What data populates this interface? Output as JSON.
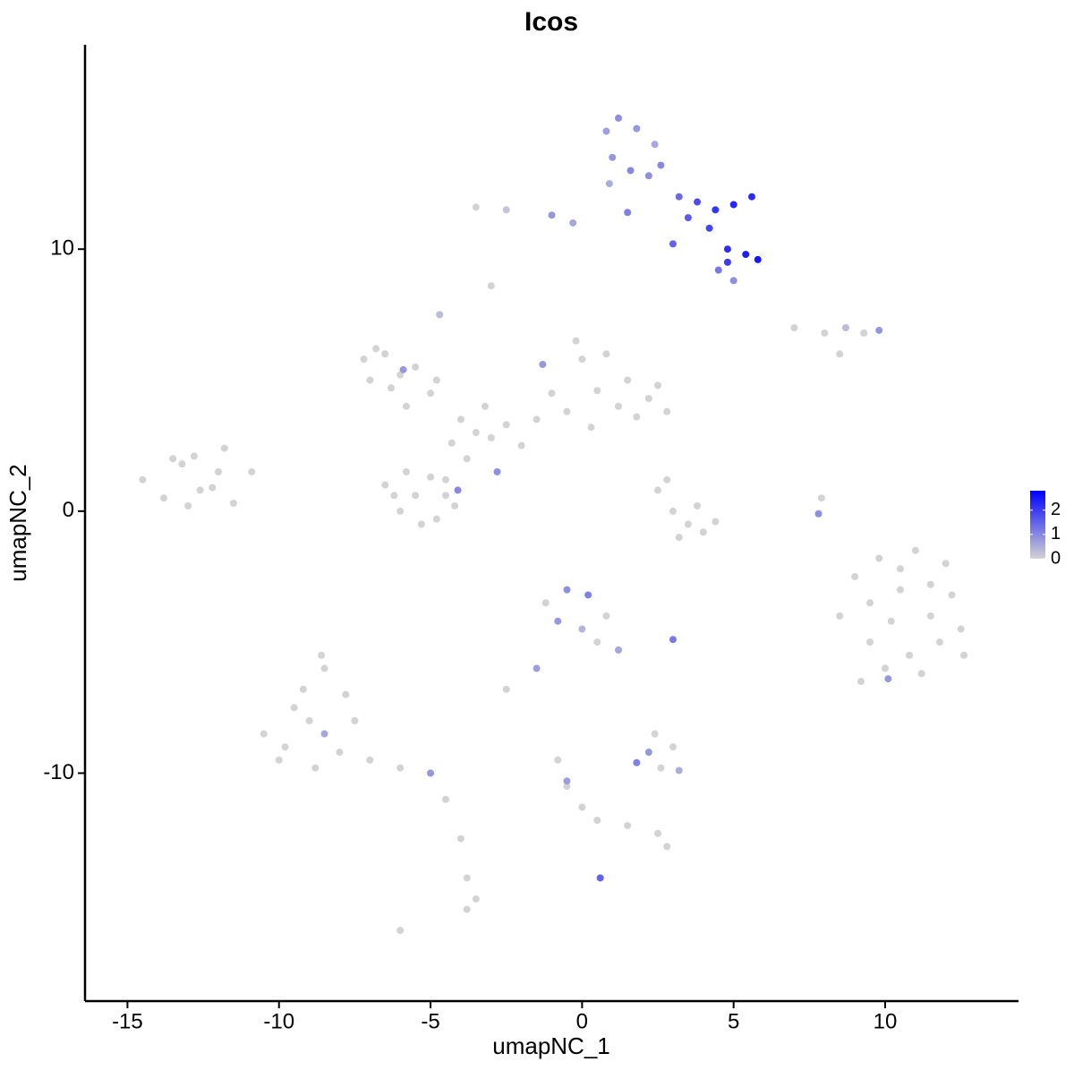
{
  "chart_data": {
    "type": "scatter",
    "title": "Icos",
    "xlabel": "umapNC_1",
    "ylabel": "umapNC_2",
    "xlim": [
      -16.4,
      14.4
    ],
    "ylim": [
      -18.7,
      17.8
    ],
    "xticks": [
      -15,
      -10,
      -5,
      0,
      5,
      10
    ],
    "yticks": [
      -10,
      0,
      10
    ],
    "color_scale": {
      "low": "#d3d3d3",
      "high": "#0000ff",
      "lim": [
        0,
        2.8
      ],
      "ticks": [
        0,
        1,
        2
      ]
    },
    "series": [
      {
        "x": [
          -14.5,
          -13.8,
          -13.2,
          -12.6,
          -12,
          -11.5,
          -13.5,
          -12.8,
          -12.2,
          -11.8,
          -13,
          -10.9
        ],
        "values": [
          1.2,
          0.5,
          1.8,
          0.8,
          1.5,
          0.3,
          2,
          2.1,
          0.9,
          2.4,
          0.2,
          1.5
        ],
        "expression": [
          0,
          0,
          0,
          0,
          0,
          0,
          0,
          0,
          0,
          0,
          0,
          0
        ]
      },
      {
        "x": [
          -7.2,
          -6.5,
          -6,
          -7,
          -6.3,
          -5.5,
          -5,
          -6.8,
          -5.8,
          -4.8,
          -5.9
        ],
        "values": [
          5.8,
          6,
          5.2,
          5,
          4.7,
          5.5,
          4.5,
          6.2,
          4,
          5,
          5.4
        ],
        "expression": [
          0,
          0,
          0,
          0,
          0,
          0,
          0,
          0,
          0,
          0,
          0.8
        ]
      },
      {
        "x": [
          -4,
          -3.5,
          -3,
          -2.5,
          -2,
          -3.8,
          -4.3,
          -2.8,
          -3.2,
          -4.5
        ],
        "values": [
          3.5,
          3,
          2.8,
          3.3,
          2.5,
          2,
          2.6,
          1.5,
          4,
          1.2
        ],
        "expression": [
          0,
          0,
          0,
          0,
          0,
          0,
          0,
          0.9,
          0,
          0
        ]
      },
      {
        "x": [
          -1,
          0,
          0.8,
          -0.5,
          1.5,
          2.2,
          2.8,
          1.8,
          0.5,
          -1.5,
          2.5,
          0.3,
          -0.2,
          1.2,
          -1.3
        ],
        "values": [
          4.5,
          5.8,
          6,
          3.8,
          5,
          4.3,
          3.8,
          3.6,
          4.6,
          3.5,
          4.8,
          3.2,
          6.5,
          4,
          5.6
        ],
        "expression": [
          0,
          0,
          0,
          0,
          0,
          0,
          0,
          0,
          0,
          0,
          0,
          0,
          0,
          0,
          0.8
        ]
      },
      {
        "x": [
          -6.5,
          -5.8,
          -5,
          -4.5,
          -6,
          -5.3,
          -4.2,
          -6.2,
          -5.5,
          -4.8,
          -4.1
        ],
        "values": [
          1,
          1.5,
          1.3,
          0.6,
          0,
          -0.5,
          0.2,
          0.6,
          0.6,
          -0.3,
          0.8
        ],
        "expression": [
          0,
          0,
          0,
          0,
          0,
          0,
          0,
          0,
          0,
          0,
          1
        ]
      },
      {
        "x": [
          -3,
          -4.7
        ],
        "values": [
          8.6,
          7.5
        ],
        "expression": [
          0,
          0.3
        ]
      },
      {
        "x": [
          7,
          8,
          8.7,
          9.3,
          9.8,
          8.5,
          7.9,
          7.8
        ],
        "values": [
          7,
          6.8,
          7,
          6.8,
          6.9,
          6,
          0.5,
          -0.1
        ],
        "expression": [
          0,
          0,
          0.3,
          0,
          0.8,
          0,
          0,
          0.9
        ]
      },
      {
        "x": [
          2.5,
          3,
          3.5,
          4,
          4.4,
          3.2,
          2.8,
          3.8
        ],
        "values": [
          0.8,
          0,
          -0.5,
          -0.8,
          -0.4,
          -1,
          1.2,
          0.2
        ],
        "expression": [
          0,
          0,
          0,
          0,
          0,
          0,
          0,
          0
        ]
      },
      {
        "x": [
          8.5,
          9,
          9.5,
          10,
          10.5,
          11,
          11.5,
          12,
          12.5,
          9.2,
          10.2,
          11.2,
          12.2,
          9.8,
          10.8,
          11.8,
          9.5,
          10.5,
          11.5,
          12.6,
          10.1
        ],
        "values": [
          -4,
          -2.5,
          -5,
          -6,
          -3,
          -1.5,
          -4,
          -2,
          -4.5,
          -6.5,
          -4.2,
          -6.2,
          -3.2,
          -1.8,
          -5.5,
          -5,
          -3.5,
          -2.2,
          -2.8,
          -5.5,
          -6.4
        ],
        "expression": [
          0,
          0,
          0,
          0,
          0,
          0,
          0,
          0,
          0,
          0,
          0,
          0,
          0,
          0,
          0,
          0,
          0,
          0,
          0,
          0,
          0.8
        ]
      },
      {
        "x": [
          -10.5,
          -10,
          -9.5,
          -9,
          -8.5,
          -8,
          -7.5,
          -9.8,
          -9.2,
          -8.6,
          -8.8,
          -7.8,
          -7,
          -6,
          -5,
          -4.5,
          -4,
          -3.8,
          -3.5,
          -3.8,
          -8.5,
          -5,
          -6
        ],
        "values": [
          -8.5,
          -9.5,
          -7.5,
          -8,
          -6,
          -9.2,
          -8,
          -9,
          -6.8,
          -5.5,
          -9.8,
          -7,
          -9.5,
          -9.8,
          -10,
          -11,
          -12.5,
          -14,
          -14.8,
          -15.2,
          -8.5,
          -10,
          -16
        ],
        "expression": [
          0,
          0,
          0,
          0,
          0,
          0,
          0,
          0,
          0,
          0,
          0,
          0,
          0,
          0,
          0,
          0,
          0,
          0,
          0,
          0,
          0.6,
          0.8,
          0
        ]
      },
      {
        "x": [
          -1.2,
          -0.5,
          0.2,
          0.8,
          -0.8,
          0,
          0.5,
          1.2,
          -1.5,
          -2.5,
          3
        ],
        "values": [
          -3.5,
          -3,
          -3.2,
          -4,
          -4.2,
          -4.5,
          -5,
          -5.3,
          -6,
          -6.8,
          -4.9
        ],
        "expression": [
          0,
          0.9,
          1.1,
          0,
          0.8,
          0.4,
          0,
          0.6,
          0.7,
          0,
          1.2
        ]
      },
      {
        "x": [
          1.8,
          2.2,
          2.6,
          3,
          2.4,
          3.2
        ],
        "values": [
          -9.6,
          -9.2,
          -9.8,
          -9,
          -8.5,
          -9.9
        ],
        "expression": [
          1.1,
          0.8,
          0,
          0,
          0,
          0.5
        ]
      },
      {
        "x": [
          -0.8,
          -0.5,
          0,
          0.5,
          1.5,
          2.5,
          2.8,
          -0.5,
          0.6
        ],
        "values": [
          -9.5,
          -10.5,
          -11.3,
          -11.8,
          -12,
          -12.3,
          -12.8,
          -10.3,
          -14
        ],
        "expression": [
          0,
          0,
          0,
          0,
          0,
          0,
          0,
          0.7,
          1.5
        ]
      },
      {
        "x": [
          0.8,
          1.2,
          1.8,
          2.4,
          1,
          1.6,
          2.2,
          0.9,
          2.6,
          3.2,
          3.8,
          4.4,
          5,
          5.6,
          3.5,
          4.2,
          4.8,
          5.4,
          5.8,
          4.5,
          5,
          4.8,
          -1,
          -2.5,
          -3.5,
          -0.3,
          1.5,
          3
        ],
        "values": [
          14.5,
          15,
          14.6,
          14,
          13.5,
          13,
          12.8,
          12.5,
          13.2,
          12,
          11.8,
          11.5,
          11.7,
          12,
          11.2,
          10.8,
          10,
          9.8,
          9.6,
          9.2,
          8.8,
          9.5,
          11.3,
          11.5,
          11.6,
          11,
          11.4,
          10.2
        ],
        "expression": [
          0.7,
          0.9,
          0.8,
          0.6,
          0.8,
          1,
          0.9,
          0.5,
          1,
          1.4,
          1.8,
          2.1,
          2.3,
          2.2,
          1.6,
          1.9,
          2.2,
          2.4,
          2.5,
          1.2,
          0.9,
          2,
          0.8,
          0.2,
          0,
          0.6,
          1.1,
          1.5
        ]
      }
    ]
  }
}
